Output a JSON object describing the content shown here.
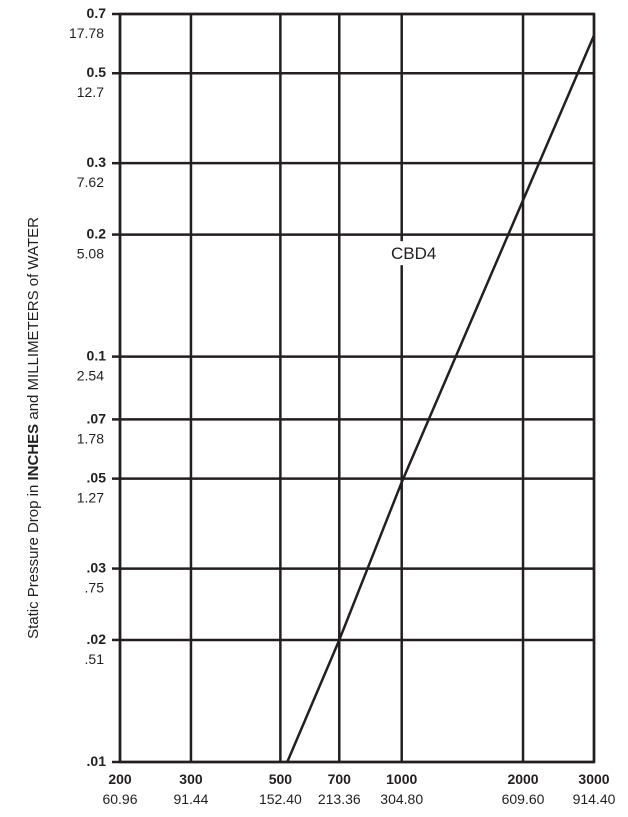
{
  "chart_data": {
    "type": "line",
    "title": "",
    "xlabel": "",
    "ylabel": {
      "prefix": "Static Pressure Drop in ",
      "bold": "INCHES",
      "suffix": " and MILLIMETERS of WATER"
    },
    "x_scale": "log",
    "y_scale": "log",
    "xlim": [
      200,
      3000
    ],
    "ylim": [
      0.01,
      0.7
    ],
    "grid": true,
    "x_ticks": [
      {
        "value": 200,
        "label": "200",
        "sublabel": "60.96"
      },
      {
        "value": 300,
        "label": "300",
        "sublabel": "91.44"
      },
      {
        "value": 500,
        "label": "500",
        "sublabel": "152.40"
      },
      {
        "value": 700,
        "label": "700",
        "sublabel": "213.36"
      },
      {
        "value": 1000,
        "label": "1000",
        "sublabel": "304.80"
      },
      {
        "value": 2000,
        "label": "2000",
        "sublabel": "609.60"
      },
      {
        "value": 3000,
        "label": "3000",
        "sublabel": "914.40"
      }
    ],
    "y_ticks": [
      {
        "value": 0.01,
        "label": ".01",
        "sublabel": ""
      },
      {
        "value": 0.02,
        "label": ".02",
        "sublabel": ".51"
      },
      {
        "value": 0.03,
        "label": ".03",
        "sublabel": ".75"
      },
      {
        "value": 0.05,
        "label": ".05",
        "sublabel": "1.27"
      },
      {
        "value": 0.07,
        "label": ".07",
        "sublabel": "1.78"
      },
      {
        "value": 0.1,
        "label": "0.1",
        "sublabel": "2.54"
      },
      {
        "value": 0.2,
        "label": "0.2",
        "sublabel": "5.08"
      },
      {
        "value": 0.3,
        "label": "0.3",
        "sublabel": "7.62"
      },
      {
        "value": 0.5,
        "label": "0.5",
        "sublabel": "12.7"
      },
      {
        "value": 0.7,
        "label": "0.7",
        "sublabel": "17.78"
      }
    ],
    "series": [
      {
        "name": "CBD4",
        "x": [
          520,
          700,
          1000,
          3000
        ],
        "y": [
          0.01,
          0.02,
          0.049,
          0.62
        ]
      }
    ],
    "colors": {
      "line": "#231f20",
      "text": "#231f20",
      "background": "#ffffff"
    }
  }
}
